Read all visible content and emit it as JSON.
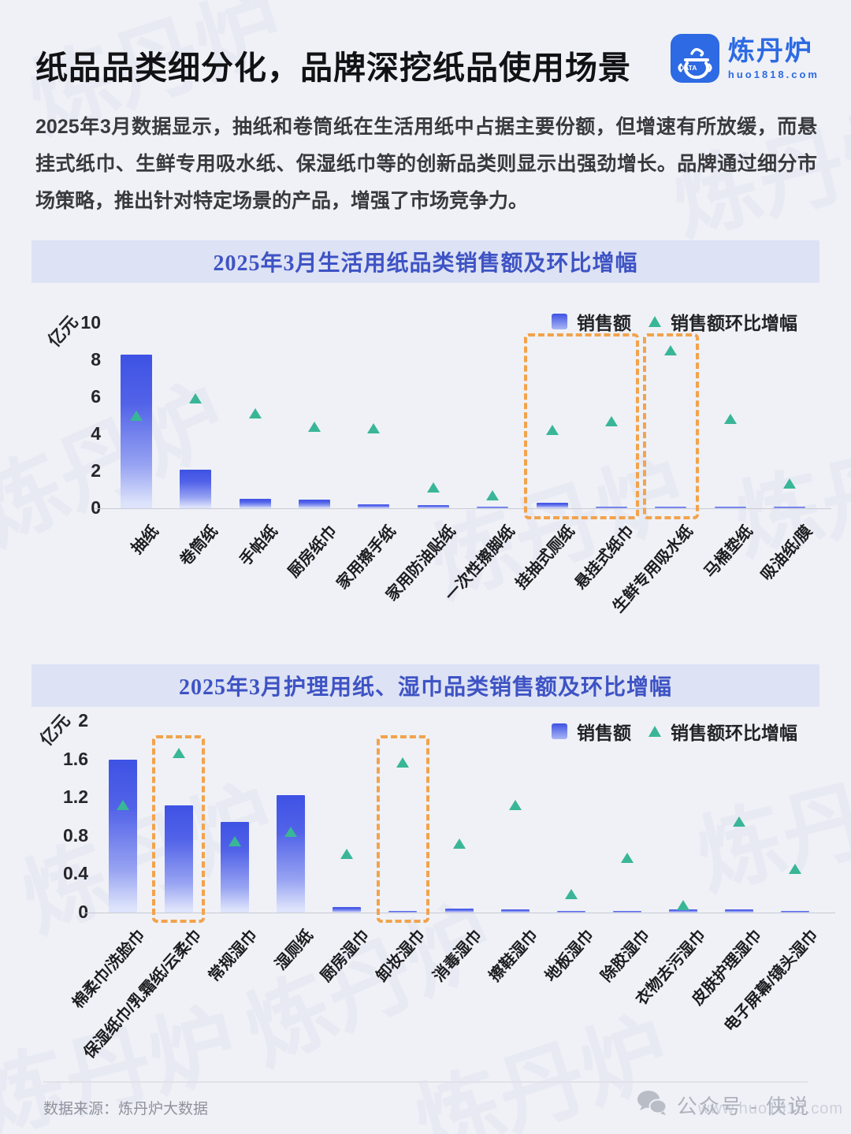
{
  "header": {
    "title": "纸品品类细分化，品牌深挖纸品使用场景",
    "logo": {
      "name": "炼丹炉",
      "domain": "huo1818.com",
      "badge": "DATA"
    }
  },
  "intro": "2025年3月数据显示，抽纸和卷筒纸在生活用纸中占据主要份额，但增速有所放缓，而悬挂式纸巾、生鲜专用吸水纸、保湿纸巾等的创新品类则显示出强劲增长。品牌通过细分市场策略，推出针对特定场景的产品，增强了市场竞争力。",
  "footer": {
    "source": "数据来源：炼丹炉大数据",
    "account": "公众号 - 侠说",
    "watermark": "www.huo1818.com"
  },
  "watermark_text": "炼丹炉",
  "colors": {
    "bar_top": "#3e52e4",
    "bar_fade": "#dde3fb",
    "triangle_green": "#39b697",
    "highlight_orange": "#f2a34c",
    "banner_bg": "#dde2f4",
    "banner_text": "#3e53c4",
    "brand_blue": "#2d6ae3"
  },
  "chart_data": [
    {
      "type": "bar",
      "title": "2025年3月生活用纸品类销售额及环比增幅",
      "ylabel": "亿元",
      "ylim": [
        0,
        10
      ],
      "yticks": [
        0,
        2,
        4,
        6,
        8,
        10
      ],
      "grid": false,
      "legend": [
        "销售额",
        "销售额环比增幅"
      ],
      "legend_position": "top-right",
      "categories": [
        "抽纸",
        "卷筒纸",
        "手帕纸",
        "厨房纸巾",
        "家用擦手纸",
        "家用防油贴纸",
        "一次性擦脚纸",
        "挂抽式厕纸",
        "悬挂式纸巾",
        "生鲜专用吸水纸",
        "马桶垫纸",
        "吸油纸/膜"
      ],
      "series": [
        {
          "name": "销售额",
          "type": "bar",
          "unit": "亿元",
          "values": [
            8.3,
            2.1,
            0.5,
            0.45,
            0.2,
            0.15,
            0.1,
            0.3,
            0.05,
            0.05,
            0.1,
            0.05
          ]
        },
        {
          "name": "销售额环比增幅",
          "type": "scatter",
          "marker": "triangle",
          "values": [
            5.0,
            5.9,
            5.1,
            4.4,
            4.3,
            1.1,
            0.7,
            4.2,
            4.7,
            8.5,
            4.8,
            1.3
          ]
        }
      ],
      "highlighted_categories": [
        [
          "挂抽式厕纸",
          "悬挂式纸巾"
        ],
        [
          "生鲜专用吸水纸",
          "生鲜专用吸水纸"
        ]
      ],
      "highlights": [
        [
          7,
          8
        ],
        [
          9,
          9
        ]
      ]
    },
    {
      "type": "bar",
      "title": "2025年3月护理用纸、湿巾品类销售额及环比增幅",
      "ylabel": "亿元",
      "ylim": [
        0,
        2
      ],
      "yticks": [
        0,
        0.4,
        0.8,
        1.2,
        1.6,
        2
      ],
      "grid": false,
      "legend": [
        "销售额",
        "销售额环比增幅"
      ],
      "legend_position": "top-right",
      "categories": [
        "棉柔巾/洗脸巾",
        "保湿纸巾/乳霜纸/云柔巾",
        "常规湿巾",
        "湿厕纸",
        "厨房湿巾",
        "卸妆湿巾",
        "消毒湿巾",
        "擦鞋湿巾",
        "地板湿巾",
        "除胶湿巾",
        "衣物去污湿巾",
        "皮肤护理湿巾",
        "电子屏幕/镜头湿巾"
      ],
      "series": [
        {
          "name": "销售额",
          "type": "bar",
          "unit": "亿元",
          "values": [
            1.6,
            1.12,
            0.95,
            1.23,
            0.06,
            0.02,
            0.04,
            0.03,
            0.02,
            0.01,
            0.03,
            0.03,
            0.02
          ]
        },
        {
          "name": "销售额环比增幅",
          "type": "scatter",
          "marker": "triangle",
          "values": [
            1.12,
            1.66,
            0.74,
            0.84,
            0.61,
            1.56,
            0.72,
            1.12,
            0.19,
            0.57,
            0.07,
            0.95,
            0.45
          ]
        }
      ],
      "highlighted_categories": [
        [
          "保湿纸巾/乳霜纸/云柔巾",
          "保湿纸巾/乳霜纸/云柔巾"
        ],
        [
          "卸妆湿巾",
          "卸妆湿巾"
        ]
      ],
      "highlights": [
        [
          1,
          1
        ],
        [
          5,
          5
        ]
      ]
    }
  ]
}
